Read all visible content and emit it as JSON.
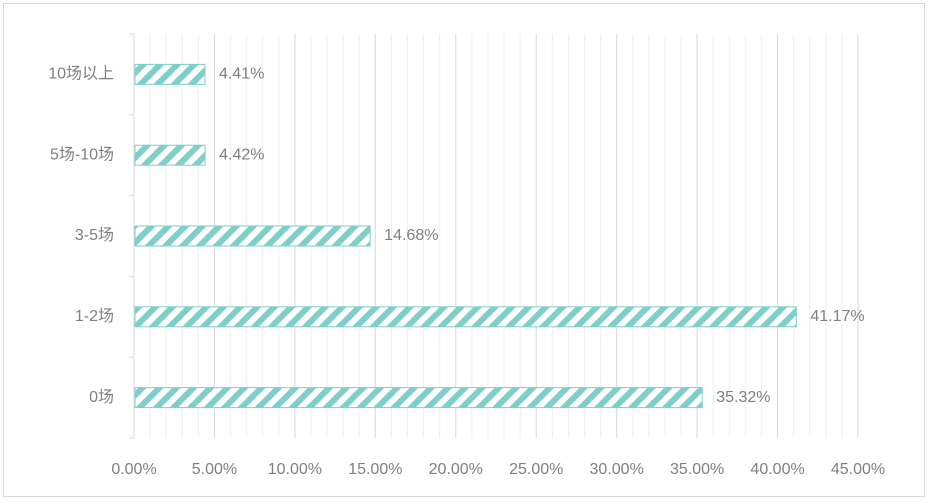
{
  "chart_data": {
    "type": "bar",
    "orientation": "horizontal",
    "categories": [
      "10场以上",
      "5场-10场",
      "3-5场",
      "1-2场",
      "0场"
    ],
    "values": [
      4.41,
      4.42,
      14.68,
      41.17,
      35.32
    ],
    "data_labels": [
      "4.41%",
      "4.42%",
      "14.68%",
      "41.17%",
      "35.32%"
    ],
    "x_ticks": [
      "0.00%",
      "5.00%",
      "10.00%",
      "15.00%",
      "20.00%",
      "25.00%",
      "30.00%",
      "35.00%",
      "40.00%",
      "45.00%"
    ],
    "xlim": [
      0,
      45
    ],
    "grid": true,
    "bar_color": "#7ececa",
    "bar_pattern": "diagonal-hatch",
    "title": "",
    "xlabel": "",
    "ylabel": ""
  }
}
